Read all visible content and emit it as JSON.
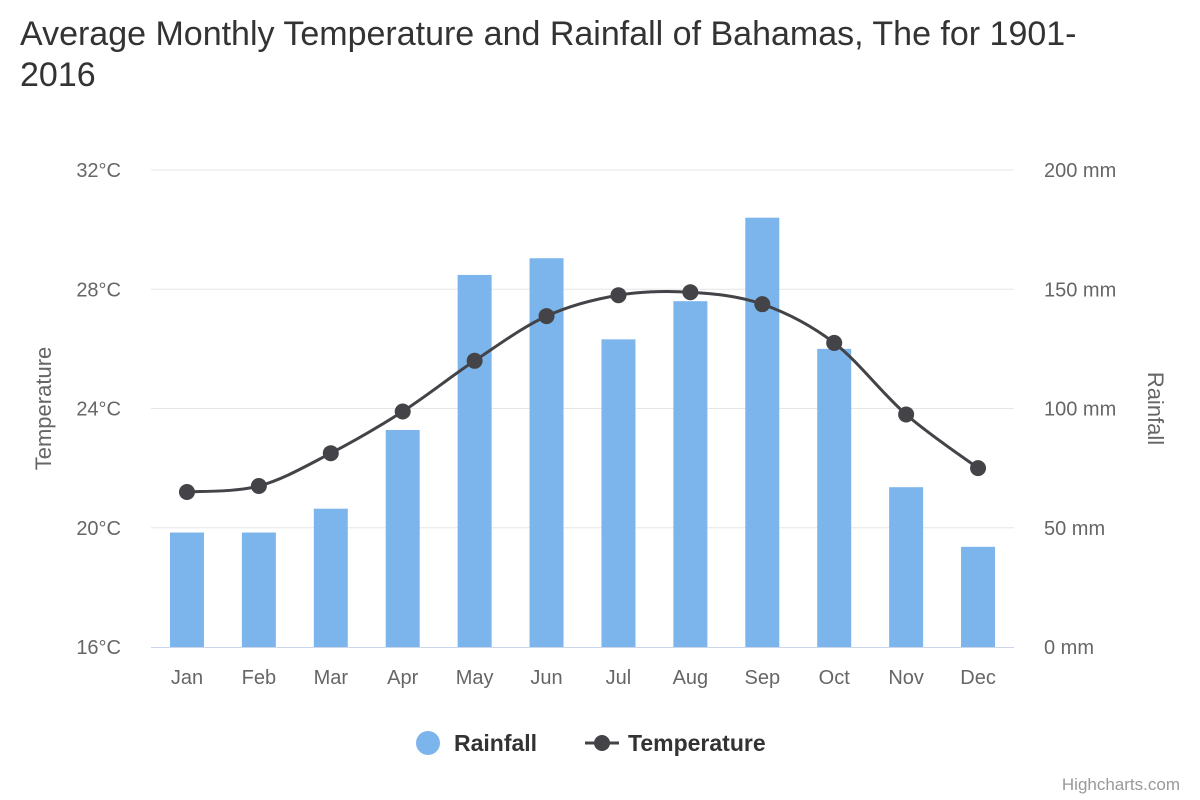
{
  "chart_data": {
    "type": "bar",
    "title": "Average Monthly Temperature and Rainfall of Bahamas, The for 1901-2016",
    "categories": [
      "Jan",
      "Feb",
      "Mar",
      "Apr",
      "May",
      "Jun",
      "Jul",
      "Aug",
      "Sep",
      "Oct",
      "Nov",
      "Dec"
    ],
    "series": [
      {
        "name": "Rainfall",
        "type": "bar",
        "axis": "right",
        "color": "#7cb5ec",
        "values": [
          48,
          48,
          58,
          91,
          156,
          163,
          129,
          145,
          180,
          125,
          67,
          42
        ]
      },
      {
        "name": "Temperature",
        "type": "line",
        "axis": "left",
        "color": "#434348",
        "values": [
          21.2,
          21.4,
          22.5,
          23.9,
          25.6,
          27.1,
          27.8,
          27.9,
          27.5,
          26.2,
          23.8,
          22.0
        ]
      }
    ],
    "y_left": {
      "title": "Temperature",
      "range": [
        16,
        32
      ],
      "ticks": [
        16,
        20,
        24,
        28,
        32
      ],
      "tick_labels": [
        "16°C",
        "20°C",
        "24°C",
        "28°C",
        "32°C"
      ]
    },
    "y_right": {
      "title": "Rainfall",
      "range": [
        0,
        200
      ],
      "ticks": [
        0,
        50,
        100,
        150,
        200
      ],
      "tick_labels": [
        "0 mm",
        "50 mm",
        "100 mm",
        "150 mm",
        "200 mm"
      ]
    },
    "grid": true,
    "legend": {
      "position": "bottom-center",
      "items": [
        "Rainfall",
        "Temperature"
      ]
    }
  },
  "credits": "Highcharts.com"
}
